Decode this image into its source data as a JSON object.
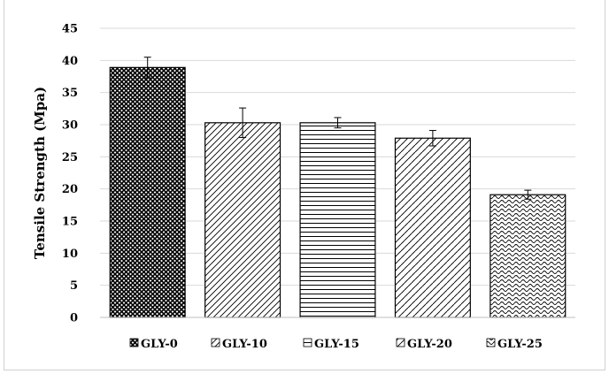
{
  "chart_data": {
    "type": "bar",
    "title": "",
    "xlabel": "",
    "ylabel": "Tensile Strength (Mpa)",
    "ylim": [
      0,
      45
    ],
    "yticks": [
      0,
      5,
      10,
      15,
      20,
      25,
      30,
      35,
      40,
      45
    ],
    "grid": true,
    "legend_position": "bottom",
    "categories": [
      "GLY-0",
      "GLY-10",
      "GLY-15",
      "GLY-20",
      "GLY-25"
    ],
    "values": [
      38.9,
      30.3,
      30.3,
      27.9,
      19.1
    ],
    "errors": [
      1.6,
      2.3,
      0.8,
      1.2,
      0.7
    ],
    "patterns": [
      "crosshatch-dense",
      "diagonal",
      "horizontal",
      "dashed-diagonal",
      "wave"
    ],
    "colors": {
      "bar_fill": "#ffffff",
      "bar_stroke": "#000000",
      "grid": "#d9d9d9"
    }
  }
}
